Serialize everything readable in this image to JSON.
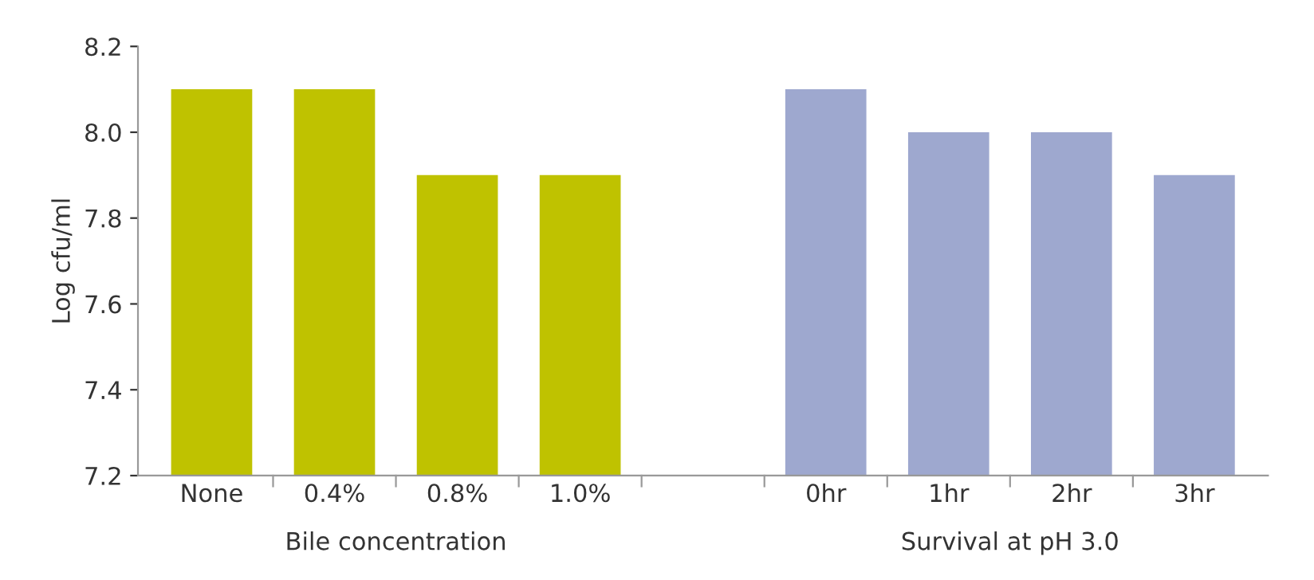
{
  "chart_data": {
    "type": "bar",
    "ylabel": "Log cfu/ml",
    "categories": [
      "None",
      "0.4%",
      "0.8%",
      "1.0%",
      null,
      "0hr",
      "1hr",
      "2hr",
      "3hr"
    ],
    "values": [
      8.1,
      8.1,
      7.9,
      7.9,
      null,
      8.1,
      8.0,
      8.0,
      7.9
    ],
    "colors": [
      "#bfc200",
      "#bfc200",
      "#bfc200",
      "#bfc200",
      null,
      "#9ea8cf",
      "#9ea8cf",
      "#9ea8cf",
      "#9ea8cf"
    ],
    "ylim": [
      7.2,
      8.2
    ],
    "yticks": [
      7.2,
      7.4,
      7.6,
      7.8,
      {
        "value": 8.0,
        "label": "8.0"
      },
      8.2
    ],
    "grid": false,
    "legend": false,
    "annotations": [
      "Bile concentration",
      "Survival at pH 3.0"
    ]
  }
}
